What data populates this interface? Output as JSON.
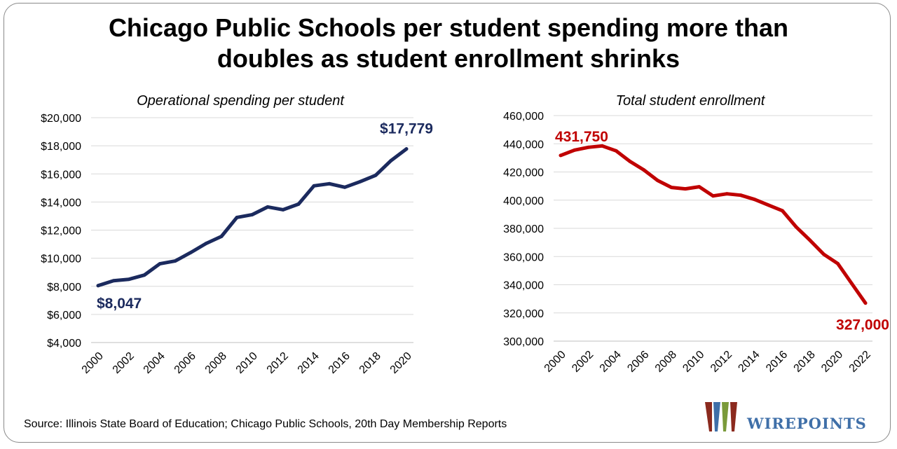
{
  "title_line1": "Chicago Public Schools per student spending more than",
  "title_line2": "doubles as student enrollment shrinks",
  "source": "Source: Illinois State Board of Education; Chicago Public Schools, 20th Day Membership Reports",
  "logo_text": "WIREPOINTS",
  "colors": {
    "spending": "#1b2a5e",
    "enrollment": "#c00000",
    "grid": "#d9d9d9",
    "logo_blue": "#3f6fa8"
  },
  "chart_data": [
    {
      "type": "line",
      "title": "Operational spending per student",
      "x": [
        2000,
        2001,
        2002,
        2003,
        2004,
        2005,
        2006,
        2007,
        2008,
        2009,
        2010,
        2011,
        2012,
        2013,
        2014,
        2015,
        2016,
        2017,
        2018,
        2019,
        2020
      ],
      "series": [
        {
          "values": [
            8047,
            8400,
            8500,
            8800,
            9600,
            9800,
            10400,
            11050,
            11550,
            12900,
            13100,
            13650,
            13450,
            13850,
            15150,
            15300,
            15050,
            15450,
            15900,
            16950,
            17779
          ]
        }
      ],
      "ylim": [
        4000,
        20000
      ],
      "yticks": [
        4000,
        6000,
        8000,
        10000,
        12000,
        14000,
        16000,
        18000,
        20000
      ],
      "ytick_labels": [
        "$4,000",
        "$6,000",
        "$8,000",
        "$10,000",
        "$12,000",
        "$14,000",
        "$16,000",
        "$18,000",
        "$20,000"
      ],
      "xtick_labels": [
        "2000",
        "2002",
        "2004",
        "2006",
        "2008",
        "2010",
        "2012",
        "2014",
        "2016",
        "2018",
        "2020"
      ],
      "annotations": [
        {
          "text": "$8,047",
          "x": 2000,
          "y": 8047
        },
        {
          "text": "$17,779",
          "x": 2020,
          "y": 17779
        }
      ],
      "grid": true
    },
    {
      "type": "line",
      "title": "Total student enrollment",
      "x": [
        2000,
        2001,
        2002,
        2003,
        2004,
        2005,
        2006,
        2007,
        2008,
        2009,
        2010,
        2011,
        2012,
        2013,
        2014,
        2015,
        2016,
        2017,
        2018,
        2019,
        2020,
        2021,
        2022
      ],
      "series": [
        {
          "values": [
            431750,
            435500,
            437500,
            438500,
            435000,
            427500,
            421500,
            414000,
            409000,
            408000,
            409500,
            403000,
            404500,
            403500,
            400500,
            396500,
            392500,
            381000,
            371500,
            361500,
            355000,
            341000,
            327000
          ]
        }
      ],
      "ylim": [
        300000,
        460000
      ],
      "yticks": [
        300000,
        320000,
        340000,
        360000,
        380000,
        400000,
        420000,
        440000,
        460000
      ],
      "ytick_labels": [
        "300,000",
        "320,000",
        "340,000",
        "360,000",
        "380,000",
        "400,000",
        "420,000",
        "440,000",
        "460,000"
      ],
      "xtick_labels": [
        "2000",
        "2002",
        "2004",
        "2006",
        "2008",
        "2010",
        "2012",
        "2014",
        "2016",
        "2018",
        "2020",
        "2022"
      ],
      "annotations": [
        {
          "text": "431,750",
          "x": 2000,
          "y": 431750
        },
        {
          "text": "327,000",
          "x": 2022,
          "y": 327000
        }
      ],
      "grid": true
    }
  ]
}
